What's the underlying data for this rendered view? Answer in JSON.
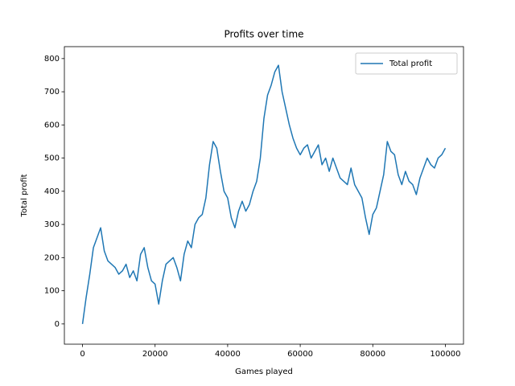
{
  "chart_data": {
    "type": "line",
    "title": "Profits over time",
    "x_label": "Games played",
    "y_label": "Total profit",
    "x": [
      0,
      1000,
      2000,
      3000,
      4000,
      5000,
      6000,
      7000,
      8000,
      9000,
      10000,
      11000,
      12000,
      13000,
      14000,
      15000,
      16000,
      17000,
      18000,
      19000,
      20000,
      21000,
      22000,
      23000,
      24000,
      25000,
      26000,
      27000,
      28000,
      29000,
      30000,
      31000,
      32000,
      33000,
      34000,
      35000,
      36000,
      37000,
      38000,
      39000,
      40000,
      41000,
      42000,
      43000,
      44000,
      45000,
      46000,
      47000,
      48000,
      49000,
      50000,
      51000,
      52000,
      53000,
      54000,
      55000,
      56000,
      57000,
      58000,
      59000,
      60000,
      61000,
      62000,
      63000,
      64000,
      65000,
      66000,
      67000,
      68000,
      69000,
      70000,
      71000,
      72000,
      73000,
      74000,
      75000,
      76000,
      77000,
      78000,
      79000,
      80000,
      81000,
      82000,
      83000,
      84000,
      85000,
      86000,
      87000,
      88000,
      89000,
      90000,
      91000,
      92000,
      93000,
      94000,
      95000,
      96000,
      97000,
      98000,
      99000,
      100000
    ],
    "series": [
      {
        "name": "Total profit",
        "color": "#1f77b4",
        "values": [
          0,
          80,
          150,
          230,
          260,
          290,
          220,
          190,
          180,
          170,
          150,
          160,
          180,
          140,
          160,
          130,
          210,
          230,
          170,
          130,
          120,
          60,
          130,
          180,
          190,
          200,
          170,
          130,
          210,
          250,
          230,
          300,
          320,
          330,
          380,
          480,
          550,
          530,
          460,
          400,
          380,
          320,
          290,
          340,
          370,
          340,
          360,
          400,
          430,
          500,
          620,
          690,
          720,
          760,
          780,
          700,
          650,
          600,
          560,
          530,
          510,
          530,
          540,
          500,
          520,
          540,
          480,
          500,
          460,
          500,
          470,
          440,
          430,
          420,
          470,
          420,
          400,
          380,
          320,
          270,
          330,
          350,
          400,
          450,
          550,
          520,
          510,
          450,
          420,
          460,
          430,
          420,
          390,
          440,
          470,
          500,
          480,
          470,
          500,
          510,
          530
        ]
      }
    ],
    "xlim": [
      -5000,
      105000
    ],
    "ylim": [
      -61,
      836
    ],
    "xticks": [
      0,
      20000,
      40000,
      60000,
      80000,
      100000
    ],
    "yticks": [
      0,
      100,
      200,
      300,
      400,
      500,
      600,
      700,
      800
    ],
    "legend": "upper right"
  }
}
